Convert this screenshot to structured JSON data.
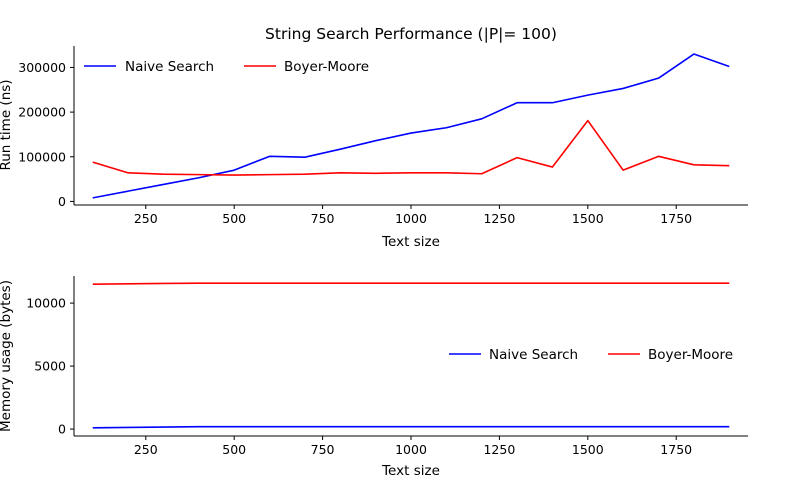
{
  "figure": {
    "title": "String Search Performance (|P|= 100)"
  },
  "chart_data": [
    {
      "type": "line",
      "title": "String Search Performance (|P|= 100)",
      "xlabel": "Text size",
      "ylabel": "Run time (ns)",
      "x": [
        100,
        200,
        300,
        400,
        500,
        600,
        700,
        800,
        900,
        1000,
        1100,
        1200,
        1300,
        1400,
        1500,
        1600,
        1700,
        1800,
        1900
      ],
      "xlim": [
        47,
        1953
      ],
      "ylim": [
        -8000,
        348000
      ],
      "xticks": [
        250,
        500,
        750,
        1000,
        1250,
        1500,
        1750
      ],
      "xtick_labels": [
        "250",
        "500",
        "750",
        "1000",
        "1250",
        "1500",
        "1750"
      ],
      "yticks": [
        0,
        100000,
        200000,
        300000
      ],
      "ytick_labels": [
        "0",
        "100000",
        "200000",
        "300000"
      ],
      "legend": "top-left",
      "grid": false,
      "series": [
        {
          "name": "Naive Search",
          "color": "#0000ff",
          "values": [
            8000,
            23000,
            38000,
            53000,
            70000,
            101000,
            99000,
            117000,
            136000,
            153000,
            165000,
            185000,
            221000,
            221000,
            238000,
            253000,
            276000,
            330000,
            302000
          ]
        },
        {
          "name": "Boyer-Moore",
          "color": "#ff0000",
          "values": [
            88000,
            64000,
            61000,
            60000,
            59000,
            60000,
            61000,
            64000,
            63000,
            64000,
            64000,
            62000,
            98000,
            77000,
            181000,
            70000,
            101000,
            82000,
            80000
          ]
        }
      ]
    },
    {
      "type": "line",
      "xlabel": "Text size",
      "ylabel": "Memory usage (bytes)",
      "x": [
        100,
        200,
        300,
        400,
        500,
        600,
        700,
        800,
        900,
        1000,
        1100,
        1200,
        1300,
        1400,
        1500,
        1600,
        1700,
        1800,
        1900
      ],
      "xlim": [
        47,
        1953
      ],
      "ylim": [
        -550,
        12150
      ],
      "xticks": [
        250,
        500,
        750,
        1000,
        1250,
        1500,
        1750
      ],
      "xtick_labels": [
        "250",
        "500",
        "750",
        "1000",
        "1250",
        "1500",
        "1750"
      ],
      "yticks": [
        0,
        5000,
        10000
      ],
      "ytick_labels": [
        "0",
        "5000",
        "10000"
      ],
      "legend": "center-right",
      "grid": false,
      "series": [
        {
          "name": "Naive Search",
          "color": "#0000ff",
          "values": [
            100,
            130,
            160,
            190,
            190,
            190,
            190,
            190,
            190,
            190,
            190,
            190,
            190,
            190,
            190,
            190,
            190,
            190,
            190
          ]
        },
        {
          "name": "Boyer-Moore",
          "color": "#ff0000",
          "values": [
            11500,
            11530,
            11560,
            11580,
            11580,
            11580,
            11580,
            11580,
            11580,
            11580,
            11580,
            11580,
            11580,
            11580,
            11580,
            11580,
            11580,
            11580,
            11580
          ]
        }
      ]
    }
  ]
}
